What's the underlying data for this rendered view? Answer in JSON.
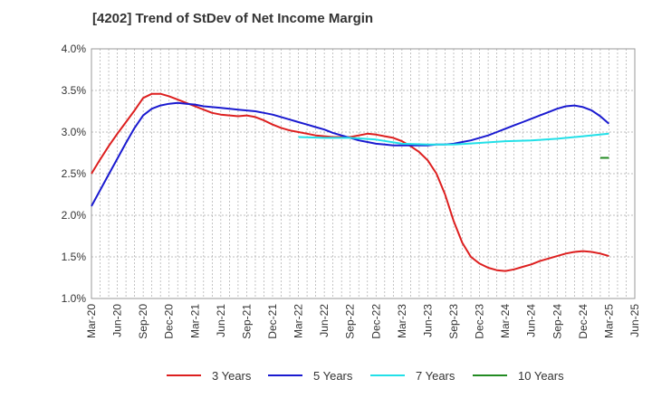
{
  "chart_data": {
    "type": "line",
    "title": "[4202]  Trend of StDev of Net Income Margin",
    "xlabel": "",
    "ylabel": "",
    "ylim": [
      1.0,
      4.0
    ],
    "y_ticks": [
      "1.0%",
      "1.5%",
      "2.0%",
      "2.5%",
      "3.0%",
      "3.5%",
      "4.0%"
    ],
    "x_ticks": [
      "Mar-20",
      "Jun-20",
      "Sep-20",
      "Dec-20",
      "Mar-21",
      "Jun-21",
      "Sep-21",
      "Dec-21",
      "Mar-22",
      "Jun-22",
      "Sep-22",
      "Dec-22",
      "Mar-23",
      "Jun-23",
      "Sep-23",
      "Dec-23",
      "Mar-24",
      "Jun-24",
      "Sep-24",
      "Dec-24",
      "Mar-25",
      "Jun-25"
    ],
    "grid": true,
    "legend_position": "bottom",
    "series": [
      {
        "name": "3 Years",
        "color": "#dd1f1f",
        "points": [
          [
            "Mar-20",
            2.5
          ],
          [
            "Apr-20",
            2.67
          ],
          [
            "May-20",
            2.83
          ],
          [
            "Jun-20",
            2.98
          ],
          [
            "Jul-20",
            3.12
          ],
          [
            "Aug-20",
            3.26
          ],
          [
            "Sep-20",
            3.41
          ],
          [
            "Oct-20",
            3.46
          ],
          [
            "Nov-20",
            3.46
          ],
          [
            "Dec-20",
            3.43
          ],
          [
            "Jan-21",
            3.39
          ],
          [
            "Feb-21",
            3.35
          ],
          [
            "Mar-21",
            3.31
          ],
          [
            "Apr-21",
            3.27
          ],
          [
            "May-21",
            3.23
          ],
          [
            "Jun-21",
            3.21
          ],
          [
            "Jul-21",
            3.2
          ],
          [
            "Aug-21",
            3.19
          ],
          [
            "Sep-21",
            3.2
          ],
          [
            "Oct-21",
            3.18
          ],
          [
            "Nov-21",
            3.14
          ],
          [
            "Dec-21",
            3.09
          ],
          [
            "Jan-22",
            3.05
          ],
          [
            "Feb-22",
            3.02
          ],
          [
            "Mar-22",
            3.0
          ],
          [
            "Apr-22",
            2.98
          ],
          [
            "May-22",
            2.96
          ],
          [
            "Jun-22",
            2.95
          ],
          [
            "Jul-22",
            2.94
          ],
          [
            "Aug-22",
            2.94
          ],
          [
            "Sep-22",
            2.94
          ],
          [
            "Oct-22",
            2.96
          ],
          [
            "Nov-22",
            2.98
          ],
          [
            "Dec-22",
            2.97
          ],
          [
            "Jan-23",
            2.95
          ],
          [
            "Feb-23",
            2.93
          ],
          [
            "Mar-23",
            2.89
          ],
          [
            "Apr-23",
            2.83
          ],
          [
            "May-23",
            2.76
          ],
          [
            "Jun-23",
            2.66
          ],
          [
            "Jul-23",
            2.5
          ],
          [
            "Aug-23",
            2.25
          ],
          [
            "Sep-23",
            1.93
          ],
          [
            "Oct-23",
            1.67
          ],
          [
            "Nov-23",
            1.5
          ],
          [
            "Dec-23",
            1.42
          ],
          [
            "Jan-24",
            1.37
          ],
          [
            "Feb-24",
            1.34
          ],
          [
            "Mar-24",
            1.33
          ],
          [
            "Apr-24",
            1.35
          ],
          [
            "May-24",
            1.38
          ],
          [
            "Jun-24",
            1.41
          ],
          [
            "Jul-24",
            1.45
          ],
          [
            "Aug-24",
            1.48
          ],
          [
            "Sep-24",
            1.51
          ],
          [
            "Oct-24",
            1.54
          ],
          [
            "Nov-24",
            1.56
          ],
          [
            "Dec-24",
            1.57
          ],
          [
            "Jan-25",
            1.56
          ],
          [
            "Feb-25",
            1.54
          ],
          [
            "Mar-25",
            1.51
          ]
        ]
      },
      {
        "name": "5 Years",
        "color": "#1a1ad0",
        "points": [
          [
            "Mar-20",
            2.11
          ],
          [
            "Apr-20",
            2.3
          ],
          [
            "May-20",
            2.49
          ],
          [
            "Jun-20",
            2.68
          ],
          [
            "Jul-20",
            2.87
          ],
          [
            "Aug-20",
            3.05
          ],
          [
            "Sep-20",
            3.2
          ],
          [
            "Oct-20",
            3.28
          ],
          [
            "Nov-20",
            3.32
          ],
          [
            "Dec-20",
            3.34
          ],
          [
            "Jan-21",
            3.35
          ],
          [
            "Feb-21",
            3.34
          ],
          [
            "Mar-21",
            3.33
          ],
          [
            "Apr-21",
            3.31
          ],
          [
            "May-21",
            3.3
          ],
          [
            "Jun-21",
            3.29
          ],
          [
            "Jul-21",
            3.28
          ],
          [
            "Aug-21",
            3.27
          ],
          [
            "Sep-21",
            3.26
          ],
          [
            "Oct-21",
            3.25
          ],
          [
            "Nov-21",
            3.23
          ],
          [
            "Dec-21",
            3.21
          ],
          [
            "Jan-22",
            3.18
          ],
          [
            "Feb-22",
            3.15
          ],
          [
            "Mar-22",
            3.12
          ],
          [
            "Apr-22",
            3.09
          ],
          [
            "May-22",
            3.06
          ],
          [
            "Jun-22",
            3.03
          ],
          [
            "Jul-22",
            2.99
          ],
          [
            "Aug-22",
            2.96
          ],
          [
            "Sep-22",
            2.93
          ],
          [
            "Oct-22",
            2.9
          ],
          [
            "Nov-22",
            2.88
          ],
          [
            "Dec-22",
            2.86
          ],
          [
            "Jan-23",
            2.85
          ],
          [
            "Feb-23",
            2.84
          ],
          [
            "Mar-23",
            2.84
          ],
          [
            "Apr-23",
            2.84
          ],
          [
            "May-23",
            2.84
          ],
          [
            "Jun-23",
            2.84
          ],
          [
            "Jul-23",
            2.85
          ],
          [
            "Aug-23",
            2.85
          ],
          [
            "Sep-23",
            2.86
          ],
          [
            "Oct-23",
            2.88
          ],
          [
            "Nov-23",
            2.9
          ],
          [
            "Dec-23",
            2.93
          ],
          [
            "Jan-24",
            2.96
          ],
          [
            "Feb-24",
            3.0
          ],
          [
            "Mar-24",
            3.04
          ],
          [
            "Apr-24",
            3.08
          ],
          [
            "May-24",
            3.12
          ],
          [
            "Jun-24",
            3.16
          ],
          [
            "Jul-24",
            3.2
          ],
          [
            "Aug-24",
            3.24
          ],
          [
            "Sep-24",
            3.28
          ],
          [
            "Oct-24",
            3.31
          ],
          [
            "Nov-24",
            3.32
          ],
          [
            "Dec-24",
            3.3
          ],
          [
            "Jan-25",
            3.26
          ],
          [
            "Feb-25",
            3.19
          ],
          [
            "Mar-25",
            3.1
          ]
        ]
      },
      {
        "name": "7 Years",
        "color": "#22e0e8",
        "points": [
          [
            "Mar-22",
            2.94
          ],
          [
            "Jun-22",
            2.93
          ],
          [
            "Sep-22",
            2.93
          ],
          [
            "Dec-22",
            2.91
          ],
          [
            "Mar-23",
            2.86
          ],
          [
            "Jun-23",
            2.85
          ],
          [
            "Sep-23",
            2.85
          ],
          [
            "Dec-23",
            2.87
          ],
          [
            "Mar-24",
            2.89
          ],
          [
            "Jun-24",
            2.9
          ],
          [
            "Sep-24",
            2.92
          ],
          [
            "Dec-24",
            2.95
          ],
          [
            "Mar-25",
            2.98
          ]
        ]
      },
      {
        "name": "10 Years",
        "color": "#228b22",
        "points": [
          [
            "Feb-25",
            2.69
          ],
          [
            "Mar-25",
            2.69
          ]
        ]
      }
    ]
  }
}
